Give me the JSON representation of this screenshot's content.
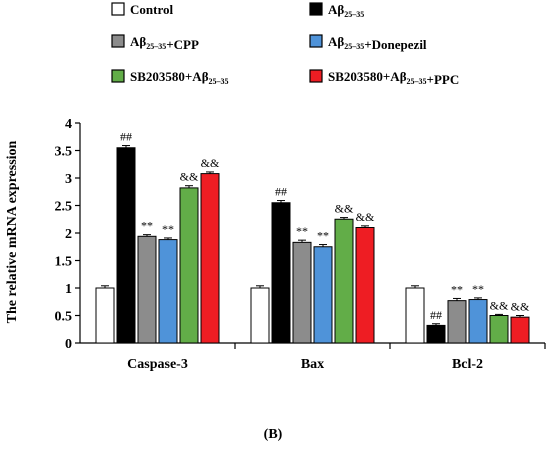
{
  "chart_data": {
    "type": "bar",
    "title": "",
    "panel_label": "(B)",
    "ylabel": "The relative mRNA expression",
    "xlabel": "",
    "ylim": [
      0,
      4
    ],
    "yticks": [
      "0",
      "0.5",
      "1",
      "1.5",
      "2",
      "2.5",
      "3",
      "3.5",
      "4"
    ],
    "ytick_values": [
      0,
      0.5,
      1,
      1.5,
      2,
      2.5,
      3,
      3.5,
      4
    ],
    "grid": false,
    "legend_position": "top",
    "categories": [
      "Caspase-3",
      "Bax",
      "Bcl-2"
    ],
    "series": [
      {
        "name": "Control",
        "color": "#ffffff",
        "values": [
          1.0,
          1.0,
          1.0
        ],
        "errors": [
          0.04,
          0.04,
          0.04
        ],
        "annotations": [
          "",
          "",
          ""
        ]
      },
      {
        "name": "Aβ25-35",
        "color": "#000000",
        "values": [
          3.55,
          2.55,
          0.32
        ],
        "errors": [
          0.04,
          0.04,
          0.03
        ],
        "annotations": [
          "##",
          "##",
          "##"
        ]
      },
      {
        "name": "Aβ25-35+CPP",
        "color": "#8c8c8c",
        "values": [
          1.94,
          1.83,
          0.77
        ],
        "errors": [
          0.03,
          0.04,
          0.04
        ],
        "annotations": [
          "**",
          "**",
          "**"
        ]
      },
      {
        "name": "Aβ25-35+Donepezil",
        "color": "#4f93d9",
        "values": [
          1.88,
          1.75,
          0.79
        ],
        "errors": [
          0.03,
          0.04,
          0.03
        ],
        "annotations": [
          "**",
          "**",
          "**"
        ]
      },
      {
        "name": "SB203580+Aβ25-35",
        "color": "#62ad48",
        "values": [
          2.82,
          2.25,
          0.5
        ],
        "errors": [
          0.04,
          0.03,
          0.02
        ],
        "annotations": [
          "&&",
          "&&",
          "&&"
        ]
      },
      {
        "name": "SB203580+Aβ25-35+PPC",
        "color": "#ee1d23",
        "values": [
          3.08,
          2.1,
          0.47
        ],
        "errors": [
          0.03,
          0.03,
          0.03
        ],
        "annotations": [
          "&&",
          "&&",
          "&&"
        ]
      }
    ]
  }
}
